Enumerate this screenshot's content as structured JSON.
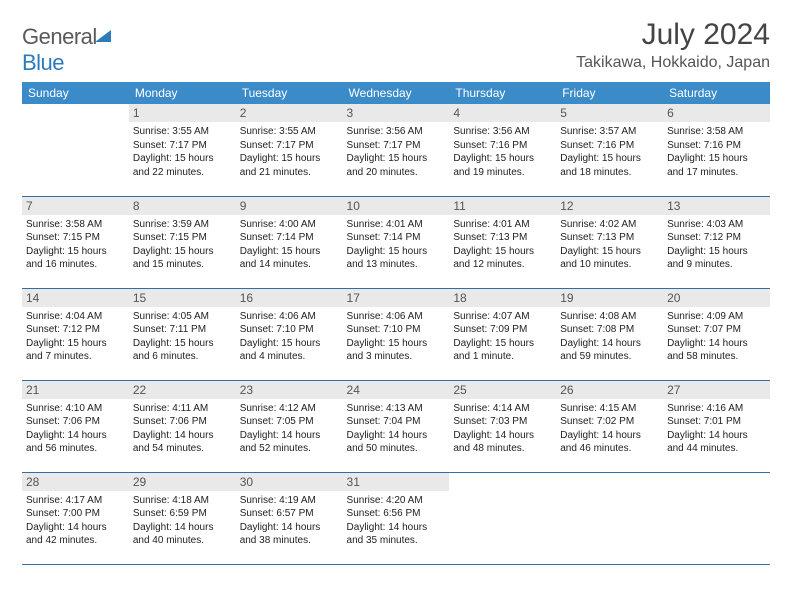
{
  "brand": {
    "part1": "General",
    "part2": "Blue"
  },
  "title": "July 2024",
  "location": "Takikawa, Hokkaido, Japan",
  "colors": {
    "header_bg": "#3b8bc9",
    "header_text": "#ffffff",
    "daynum_bg": "#e9e9e9",
    "rule": "#2f6fa6",
    "brand_gray": "#5a5a5a",
    "brand_blue": "#2b7bbd"
  },
  "day_names": [
    "Sunday",
    "Monday",
    "Tuesday",
    "Wednesday",
    "Thursday",
    "Friday",
    "Saturday"
  ],
  "weeks": [
    [
      null,
      {
        "n": "1",
        "sr": "Sunrise: 3:55 AM",
        "ss": "Sunset: 7:17 PM",
        "d1": "Daylight: 15 hours",
        "d2": "and 22 minutes."
      },
      {
        "n": "2",
        "sr": "Sunrise: 3:55 AM",
        "ss": "Sunset: 7:17 PM",
        "d1": "Daylight: 15 hours",
        "d2": "and 21 minutes."
      },
      {
        "n": "3",
        "sr": "Sunrise: 3:56 AM",
        "ss": "Sunset: 7:17 PM",
        "d1": "Daylight: 15 hours",
        "d2": "and 20 minutes."
      },
      {
        "n": "4",
        "sr": "Sunrise: 3:56 AM",
        "ss": "Sunset: 7:16 PM",
        "d1": "Daylight: 15 hours",
        "d2": "and 19 minutes."
      },
      {
        "n": "5",
        "sr": "Sunrise: 3:57 AM",
        "ss": "Sunset: 7:16 PM",
        "d1": "Daylight: 15 hours",
        "d2": "and 18 minutes."
      },
      {
        "n": "6",
        "sr": "Sunrise: 3:58 AM",
        "ss": "Sunset: 7:16 PM",
        "d1": "Daylight: 15 hours",
        "d2": "and 17 minutes."
      }
    ],
    [
      {
        "n": "7",
        "sr": "Sunrise: 3:58 AM",
        "ss": "Sunset: 7:15 PM",
        "d1": "Daylight: 15 hours",
        "d2": "and 16 minutes."
      },
      {
        "n": "8",
        "sr": "Sunrise: 3:59 AM",
        "ss": "Sunset: 7:15 PM",
        "d1": "Daylight: 15 hours",
        "d2": "and 15 minutes."
      },
      {
        "n": "9",
        "sr": "Sunrise: 4:00 AM",
        "ss": "Sunset: 7:14 PM",
        "d1": "Daylight: 15 hours",
        "d2": "and 14 minutes."
      },
      {
        "n": "10",
        "sr": "Sunrise: 4:01 AM",
        "ss": "Sunset: 7:14 PM",
        "d1": "Daylight: 15 hours",
        "d2": "and 13 minutes."
      },
      {
        "n": "11",
        "sr": "Sunrise: 4:01 AM",
        "ss": "Sunset: 7:13 PM",
        "d1": "Daylight: 15 hours",
        "d2": "and 12 minutes."
      },
      {
        "n": "12",
        "sr": "Sunrise: 4:02 AM",
        "ss": "Sunset: 7:13 PM",
        "d1": "Daylight: 15 hours",
        "d2": "and 10 minutes."
      },
      {
        "n": "13",
        "sr": "Sunrise: 4:03 AM",
        "ss": "Sunset: 7:12 PM",
        "d1": "Daylight: 15 hours",
        "d2": "and 9 minutes."
      }
    ],
    [
      {
        "n": "14",
        "sr": "Sunrise: 4:04 AM",
        "ss": "Sunset: 7:12 PM",
        "d1": "Daylight: 15 hours",
        "d2": "and 7 minutes."
      },
      {
        "n": "15",
        "sr": "Sunrise: 4:05 AM",
        "ss": "Sunset: 7:11 PM",
        "d1": "Daylight: 15 hours",
        "d2": "and 6 minutes."
      },
      {
        "n": "16",
        "sr": "Sunrise: 4:06 AM",
        "ss": "Sunset: 7:10 PM",
        "d1": "Daylight: 15 hours",
        "d2": "and 4 minutes."
      },
      {
        "n": "17",
        "sr": "Sunrise: 4:06 AM",
        "ss": "Sunset: 7:10 PM",
        "d1": "Daylight: 15 hours",
        "d2": "and 3 minutes."
      },
      {
        "n": "18",
        "sr": "Sunrise: 4:07 AM",
        "ss": "Sunset: 7:09 PM",
        "d1": "Daylight: 15 hours",
        "d2": "and 1 minute."
      },
      {
        "n": "19",
        "sr": "Sunrise: 4:08 AM",
        "ss": "Sunset: 7:08 PM",
        "d1": "Daylight: 14 hours",
        "d2": "and 59 minutes."
      },
      {
        "n": "20",
        "sr": "Sunrise: 4:09 AM",
        "ss": "Sunset: 7:07 PM",
        "d1": "Daylight: 14 hours",
        "d2": "and 58 minutes."
      }
    ],
    [
      {
        "n": "21",
        "sr": "Sunrise: 4:10 AM",
        "ss": "Sunset: 7:06 PM",
        "d1": "Daylight: 14 hours",
        "d2": "and 56 minutes."
      },
      {
        "n": "22",
        "sr": "Sunrise: 4:11 AM",
        "ss": "Sunset: 7:06 PM",
        "d1": "Daylight: 14 hours",
        "d2": "and 54 minutes."
      },
      {
        "n": "23",
        "sr": "Sunrise: 4:12 AM",
        "ss": "Sunset: 7:05 PM",
        "d1": "Daylight: 14 hours",
        "d2": "and 52 minutes."
      },
      {
        "n": "24",
        "sr": "Sunrise: 4:13 AM",
        "ss": "Sunset: 7:04 PM",
        "d1": "Daylight: 14 hours",
        "d2": "and 50 minutes."
      },
      {
        "n": "25",
        "sr": "Sunrise: 4:14 AM",
        "ss": "Sunset: 7:03 PM",
        "d1": "Daylight: 14 hours",
        "d2": "and 48 minutes."
      },
      {
        "n": "26",
        "sr": "Sunrise: 4:15 AM",
        "ss": "Sunset: 7:02 PM",
        "d1": "Daylight: 14 hours",
        "d2": "and 46 minutes."
      },
      {
        "n": "27",
        "sr": "Sunrise: 4:16 AM",
        "ss": "Sunset: 7:01 PM",
        "d1": "Daylight: 14 hours",
        "d2": "and 44 minutes."
      }
    ],
    [
      {
        "n": "28",
        "sr": "Sunrise: 4:17 AM",
        "ss": "Sunset: 7:00 PM",
        "d1": "Daylight: 14 hours",
        "d2": "and 42 minutes."
      },
      {
        "n": "29",
        "sr": "Sunrise: 4:18 AM",
        "ss": "Sunset: 6:59 PM",
        "d1": "Daylight: 14 hours",
        "d2": "and 40 minutes."
      },
      {
        "n": "30",
        "sr": "Sunrise: 4:19 AM",
        "ss": "Sunset: 6:57 PM",
        "d1": "Daylight: 14 hours",
        "d2": "and 38 minutes."
      },
      {
        "n": "31",
        "sr": "Sunrise: 4:20 AM",
        "ss": "Sunset: 6:56 PM",
        "d1": "Daylight: 14 hours",
        "d2": "and 35 minutes."
      },
      null,
      null,
      null
    ]
  ]
}
